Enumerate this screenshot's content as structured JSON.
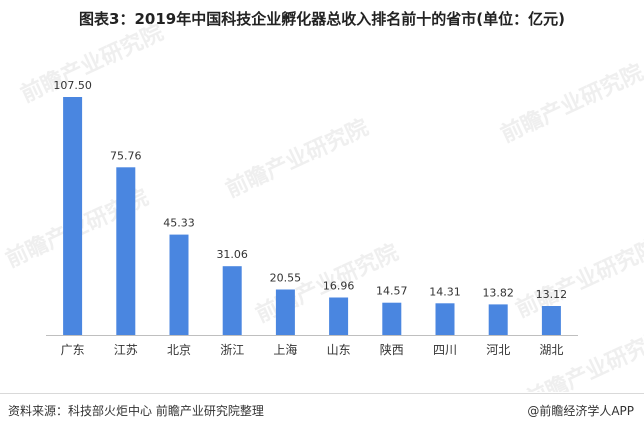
{
  "title": "图表3：2019年中国科技企业孵化器总收入排名前十的省市(单位：亿元)",
  "footer": {
    "source": "资料来源：科技部火炬中心 前瞻产业研究院整理",
    "brand": "@前瞻经济学人APP"
  },
  "watermark": "前瞻产业研究院",
  "colors": {
    "bar": "#4a86e0",
    "axis": "#bfbfbf",
    "watermark": "#e2e2e2"
  },
  "chart_data": {
    "type": "bar",
    "title": "图表3：2019年中国科技企业孵化器总收入排名前十的省市(单位：亿元)",
    "xlabel": "",
    "ylabel": "",
    "categories": [
      "广东",
      "江苏",
      "北京",
      "浙江",
      "上海",
      "山东",
      "陕西",
      "四川",
      "河北",
      "湖北"
    ],
    "values": [
      107.5,
      75.76,
      45.33,
      31.06,
      20.55,
      16.96,
      14.57,
      14.31,
      13.82,
      13.12
    ],
    "value_labels": [
      "107.50",
      "75.76",
      "45.33",
      "31.06",
      "20.55",
      "16.96",
      "14.57",
      "14.31",
      "13.82",
      "13.12"
    ],
    "ylim": [
      0,
      107.5
    ],
    "grid": false,
    "legend": "none"
  }
}
